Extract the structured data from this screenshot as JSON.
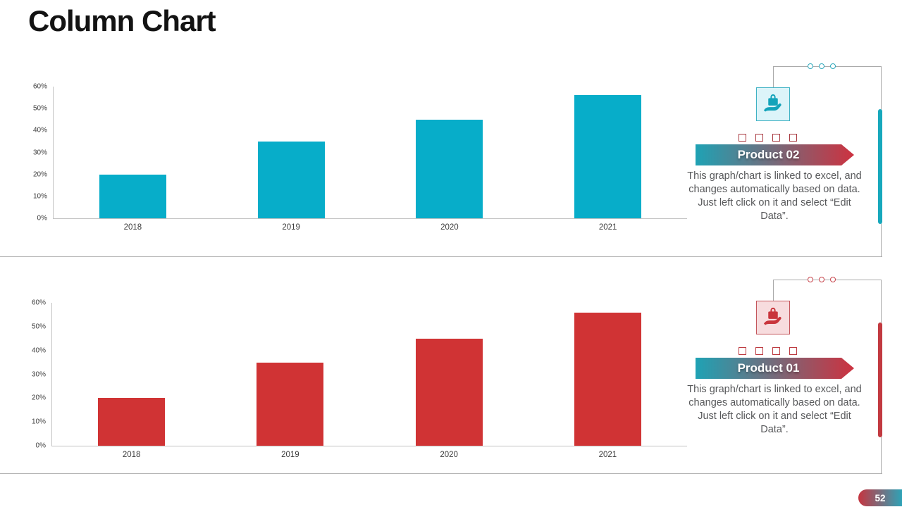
{
  "slide": {
    "title": "Column Chart",
    "page_number": "52"
  },
  "chart_data": [
    {
      "type": "bar",
      "name": "Product 02",
      "categories": [
        "2018",
        "2019",
        "2020",
        "2021"
      ],
      "values": [
        20,
        35,
        45,
        56
      ],
      "value_unit": "%",
      "bar_color": "#07adc9",
      "ylim": [
        0,
        60
      ],
      "ytick_step": 10,
      "yticklabels": [
        "0%",
        "10%",
        "20%",
        "30%",
        "40%",
        "50%",
        "60%"
      ],
      "grid": false,
      "legend": "none",
      "title": "",
      "xlabel": "",
      "ylabel": ""
    },
    {
      "type": "bar",
      "name": "Product 01",
      "categories": [
        "2018",
        "2019",
        "2020",
        "2021"
      ],
      "values": [
        20,
        35,
        45,
        56
      ],
      "value_unit": "%",
      "bar_color": "#d03334",
      "ylim": [
        0,
        60
      ],
      "ytick_step": 10,
      "yticklabels": [
        "0%",
        "10%",
        "20%",
        "30%",
        "40%",
        "50%",
        "60%"
      ],
      "grid": false,
      "legend": "none",
      "title": "",
      "xlabel": "",
      "ylabel": ""
    }
  ],
  "panels": [
    {
      "label": "Product 02",
      "description": "This graph/chart is linked to excel, and changes automatically based on data. Just left click on it and select “Edit Data”.",
      "icon": "hand-holding-briefcase-icon",
      "accent_color": "#17a8bc",
      "icon_color": "#12a3ba",
      "banner_gradient": [
        "#1fa2b4",
        "#cd3240"
      ]
    },
    {
      "label": "Product 01",
      "description": "This graph/chart is linked to excel, and changes automatically based on data. Just left click on it and select “Edit Data”.",
      "icon": "hand-holding-briefcase-icon",
      "accent_color": "#c23a40",
      "icon_color": "#c9353c",
      "banner_gradient": [
        "#1fa2b4",
        "#cd3240"
      ]
    }
  ]
}
